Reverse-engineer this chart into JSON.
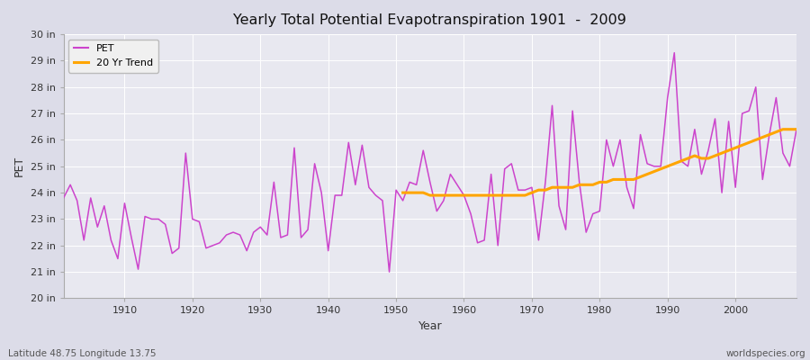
{
  "title": "Yearly Total Potential Evapotranspiration 1901  -  2009",
  "xlabel": "Year",
  "ylabel": "PET",
  "subtitle_left": "Latitude 48.75 Longitude 13.75",
  "subtitle_right": "worldspecies.org",
  "pet_color": "#CC44CC",
  "trend_color": "#FFA500",
  "bg_outer": "#DCDCE8",
  "bg_inner": "#E8E8F0",
  "grid_color": "#FFFFFF",
  "ylim": [
    20,
    30
  ],
  "ytick_labels": [
    "20 in",
    "21 in",
    "22 in",
    "23 in",
    "24 in",
    "25 in",
    "26 in",
    "27 in",
    "28 in",
    "29 in",
    "30 in"
  ],
  "ytick_values": [
    20,
    21,
    22,
    23,
    24,
    25,
    26,
    27,
    28,
    29,
    30
  ],
  "years": [
    1901,
    1902,
    1903,
    1904,
    1905,
    1906,
    1907,
    1908,
    1909,
    1910,
    1911,
    1912,
    1913,
    1914,
    1915,
    1916,
    1917,
    1918,
    1919,
    1920,
    1921,
    1922,
    1923,
    1924,
    1925,
    1926,
    1927,
    1928,
    1929,
    1930,
    1931,
    1932,
    1933,
    1934,
    1935,
    1936,
    1937,
    1938,
    1939,
    1940,
    1941,
    1942,
    1943,
    1944,
    1945,
    1946,
    1947,
    1948,
    1949,
    1950,
    1951,
    1952,
    1953,
    1954,
    1955,
    1956,
    1957,
    1958,
    1959,
    1960,
    1961,
    1962,
    1963,
    1964,
    1965,
    1966,
    1967,
    1968,
    1969,
    1970,
    1971,
    1972,
    1973,
    1974,
    1975,
    1976,
    1977,
    1978,
    1979,
    1980,
    1981,
    1982,
    1983,
    1984,
    1985,
    1986,
    1987,
    1988,
    1989,
    1990,
    1991,
    1992,
    1993,
    1994,
    1995,
    1996,
    1997,
    1998,
    1999,
    2000,
    2001,
    2002,
    2003,
    2004,
    2005,
    2006,
    2007,
    2008,
    2009
  ],
  "pet_values": [
    23.8,
    24.3,
    23.7,
    22.2,
    23.8,
    22.7,
    23.5,
    22.2,
    21.5,
    23.6,
    22.3,
    21.1,
    23.1,
    23.0,
    23.0,
    22.8,
    21.7,
    21.9,
    25.5,
    23.0,
    22.9,
    21.9,
    22.0,
    22.1,
    22.4,
    22.5,
    22.4,
    21.8,
    22.5,
    22.7,
    22.4,
    24.4,
    22.3,
    22.4,
    25.7,
    22.3,
    22.6,
    25.1,
    24.0,
    21.8,
    23.9,
    23.9,
    25.9,
    24.3,
    25.8,
    24.2,
    23.9,
    23.7,
    21.0,
    24.1,
    23.7,
    24.4,
    24.3,
    25.6,
    24.4,
    23.3,
    23.7,
    24.7,
    24.3,
    23.9,
    23.2,
    22.1,
    22.2,
    24.7,
    22.0,
    24.9,
    25.1,
    24.1,
    24.1,
    24.2,
    22.2,
    24.4,
    27.3,
    23.5,
    22.6,
    27.1,
    24.4,
    22.5,
    23.2,
    23.3,
    26.0,
    25.0,
    26.0,
    24.2,
    23.4,
    26.2,
    25.1,
    25.0,
    25.0,
    27.6,
    29.3,
    25.2,
    25.0,
    26.4,
    24.7,
    25.6,
    26.8,
    24.0,
    26.7,
    24.2,
    27.0,
    27.1,
    28.0,
    24.5,
    26.2,
    27.6,
    25.5,
    25.0,
    26.4
  ],
  "trend_values_years": [
    1951,
    1952,
    1953,
    1954,
    1955,
    1956,
    1957,
    1958,
    1959,
    1960,
    1961,
    1962,
    1963,
    1964,
    1965,
    1966,
    1967,
    1968,
    1969,
    1970,
    1971,
    1972,
    1973,
    1974,
    1975,
    1976,
    1977,
    1978,
    1979,
    1980,
    1981,
    1982,
    1983,
    1984,
    1985,
    1986,
    1987,
    1988,
    1989,
    1990,
    1991,
    1992,
    1993,
    1994,
    1995,
    1996,
    1997,
    1998,
    1999,
    2000,
    2001,
    2002,
    2003,
    2004,
    2005,
    2006,
    2007,
    2008,
    2009
  ],
  "trend_values": [
    24.0,
    24.0,
    24.0,
    24.0,
    23.9,
    23.9,
    23.9,
    23.9,
    23.9,
    23.9,
    23.9,
    23.9,
    23.9,
    23.9,
    23.9,
    23.9,
    23.9,
    23.9,
    23.9,
    24.0,
    24.1,
    24.1,
    24.2,
    24.2,
    24.2,
    24.2,
    24.3,
    24.3,
    24.3,
    24.4,
    24.4,
    24.5,
    24.5,
    24.5,
    24.5,
    24.6,
    24.7,
    24.8,
    24.9,
    25.0,
    25.1,
    25.2,
    25.3,
    25.4,
    25.3,
    25.3,
    25.4,
    25.5,
    25.6,
    25.7,
    25.8,
    25.9,
    26.0,
    26.1,
    26.2,
    26.3,
    26.4,
    26.4,
    26.4
  ],
  "xticks": [
    1910,
    1920,
    1930,
    1940,
    1950,
    1960,
    1970,
    1980,
    1990,
    2000
  ]
}
